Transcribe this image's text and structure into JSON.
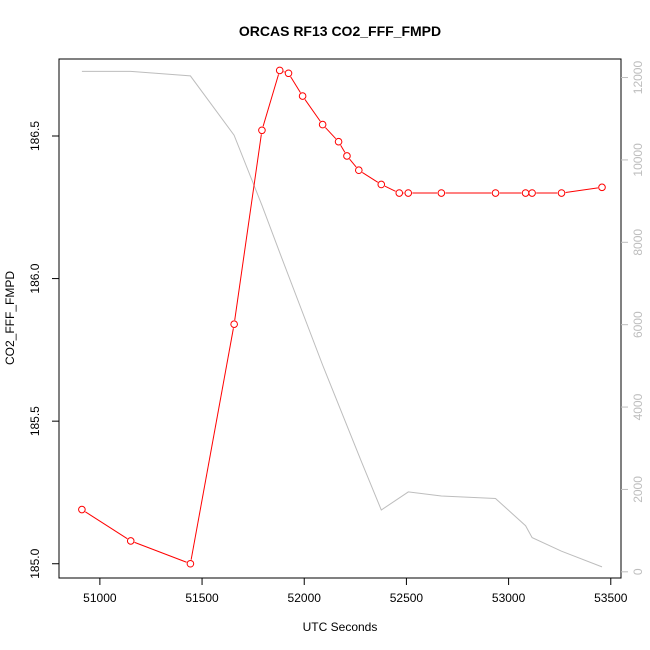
{
  "chart_data": {
    "type": "line",
    "title": "ORCAS RF13 CO2_FFF_FMPD",
    "xlabel": "UTC Seconds",
    "ylabel": "CO2_FFF_FMPD",
    "xlim": [
      50800,
      53550
    ],
    "ylim": [
      184.95,
      186.77
    ],
    "y2lim": [
      -150,
      12450
    ],
    "x_ticks": [
      51000,
      51500,
      52000,
      52500,
      53000,
      53500
    ],
    "x_tick_labels": [
      "51000",
      "51500",
      "52000",
      "52500",
      "53000",
      "53500"
    ],
    "y_ticks": [
      185.0,
      185.5,
      186.0,
      186.5
    ],
    "y_tick_labels": [
      "185.0",
      "185.5",
      "186.0",
      "186.5"
    ],
    "y2_ticks": [
      0,
      2000,
      4000,
      6000,
      8000,
      10000,
      12000
    ],
    "y2_tick_labels": [
      "0",
      "2000",
      "4000",
      "6000",
      "8000",
      "10000",
      "12000"
    ],
    "series": [
      {
        "axis": "left",
        "color": "#ff0000",
        "marker": "open-circle",
        "x": [
          50912,
          51151,
          51443,
          51657,
          51793,
          51880,
          51923,
          51992,
          52090,
          52168,
          52209,
          52267,
          52377,
          52465,
          52509,
          52671,
          52936,
          53083,
          53115,
          53259,
          53457
        ],
        "y": [
          185.19,
          185.08,
          185.0,
          185.84,
          186.52,
          186.73,
          186.72,
          186.64,
          186.54,
          186.48,
          186.43,
          186.38,
          186.33,
          186.3,
          186.3,
          186.3,
          186.3,
          186.3,
          186.3,
          186.3,
          186.32
        ]
      },
      {
        "axis": "right",
        "color": "#bdbdbd",
        "marker": "none",
        "x": [
          50912,
          51151,
          51443,
          51657,
          51793,
          51880,
          52090,
          52280,
          52377,
          52509,
          52671,
          52936,
          53083,
          53115,
          53259,
          53457
        ],
        "y": [
          12150,
          12150,
          12040,
          10600,
          8900,
          7750,
          5020,
          2670,
          1500,
          1940,
          1840,
          1780,
          1120,
          830,
          500,
          120
        ]
      }
    ]
  }
}
